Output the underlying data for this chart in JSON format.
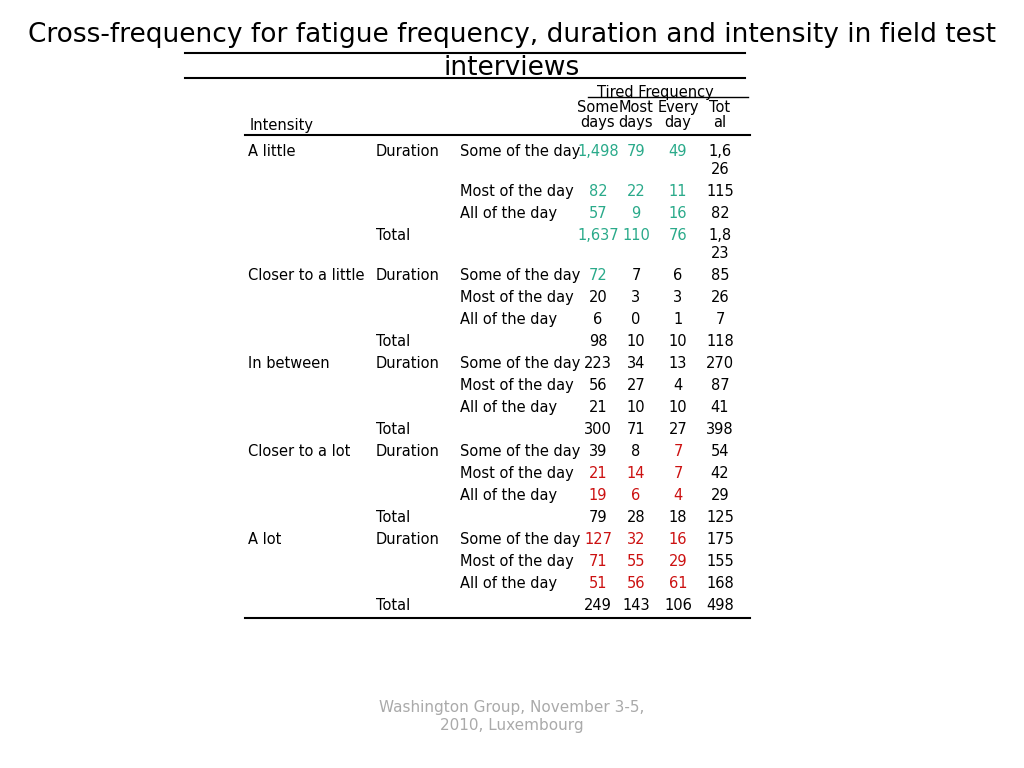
{
  "title_line1": "Cross-frequency for fatigue frequency, duration and intensity in field test",
  "title_line2": "interviews",
  "footer": "Washington Group, November 3-5,\n2010, Luxembourg",
  "header_group": "Tired Frequency",
  "col_header_top": [
    "Some",
    "Most",
    "Every",
    "Tot"
  ],
  "col_header_bot": [
    "days",
    "days",
    "day",
    "al"
  ],
  "row_header1": "Intensity",
  "rows": [
    {
      "intensity": "A little",
      "duration": "Duration",
      "duration_sub": "Some of the day",
      "val1": "1,498",
      "val2": "79",
      "val3": "49",
      "val4_a": "1,6",
      "val4_b": "26",
      "c1": "teal",
      "c2": "teal",
      "c3": "teal",
      "c4": "black"
    },
    {
      "intensity": "",
      "duration": "",
      "duration_sub": "Most of the day",
      "val1": "82",
      "val2": "22",
      "val3": "11",
      "val4_a": "115",
      "val4_b": "",
      "c1": "teal",
      "c2": "teal",
      "c3": "teal",
      "c4": "black"
    },
    {
      "intensity": "",
      "duration": "",
      "duration_sub": "All of the day",
      "val1": "57",
      "val2": "9",
      "val3": "16",
      "val4_a": "82",
      "val4_b": "",
      "c1": "teal",
      "c2": "teal",
      "c3": "teal",
      "c4": "black"
    },
    {
      "intensity": "",
      "duration": "Total",
      "duration_sub": "",
      "val1": "1,637",
      "val2": "110",
      "val3": "76",
      "val4_a": "1,8",
      "val4_b": "23",
      "c1": "teal",
      "c2": "teal",
      "c3": "teal",
      "c4": "black"
    },
    {
      "intensity": "Closer to a little",
      "duration": "Duration",
      "duration_sub": "Some of the day",
      "val1": "72",
      "val2": "7",
      "val3": "6",
      "val4_a": "85",
      "val4_b": "",
      "c1": "teal",
      "c2": "black",
      "c3": "black",
      "c4": "black"
    },
    {
      "intensity": "",
      "duration": "",
      "duration_sub": "Most of the day",
      "val1": "20",
      "val2": "3",
      "val3": "3",
      "val4_a": "26",
      "val4_b": "",
      "c1": "black",
      "c2": "black",
      "c3": "black",
      "c4": "black"
    },
    {
      "intensity": "",
      "duration": "",
      "duration_sub": "All of the day",
      "val1": "6",
      "val2": "0",
      "val3": "1",
      "val4_a": "7",
      "val4_b": "",
      "c1": "black",
      "c2": "black",
      "c3": "black",
      "c4": "black"
    },
    {
      "intensity": "",
      "duration": "Total",
      "duration_sub": "",
      "val1": "98",
      "val2": "10",
      "val3": "10",
      "val4_a": "118",
      "val4_b": "",
      "c1": "black",
      "c2": "black",
      "c3": "black",
      "c4": "black"
    },
    {
      "intensity": "In between",
      "duration": "Duration",
      "duration_sub": "Some of the day",
      "val1": "223",
      "val2": "34",
      "val3": "13",
      "val4_a": "270",
      "val4_b": "",
      "c1": "black",
      "c2": "black",
      "c3": "black",
      "c4": "black"
    },
    {
      "intensity": "",
      "duration": "",
      "duration_sub": "Most of the day",
      "val1": "56",
      "val2": "27",
      "val3": "4",
      "val4_a": "87",
      "val4_b": "",
      "c1": "black",
      "c2": "black",
      "c3": "black",
      "c4": "black"
    },
    {
      "intensity": "",
      "duration": "",
      "duration_sub": "All of the day",
      "val1": "21",
      "val2": "10",
      "val3": "10",
      "val4_a": "41",
      "val4_b": "",
      "c1": "black",
      "c2": "black",
      "c3": "black",
      "c4": "black"
    },
    {
      "intensity": "",
      "duration": "Total",
      "duration_sub": "",
      "val1": "300",
      "val2": "71",
      "val3": "27",
      "val4_a": "398",
      "val4_b": "",
      "c1": "black",
      "c2": "black",
      "c3": "black",
      "c4": "black"
    },
    {
      "intensity": "Closer to a lot",
      "duration": "Duration",
      "duration_sub": "Some of the day",
      "val1": "39",
      "val2": "8",
      "val3": "7",
      "val4_a": "54",
      "val4_b": "",
      "c1": "black",
      "c2": "black",
      "c3": "red",
      "c4": "black"
    },
    {
      "intensity": "",
      "duration": "",
      "duration_sub": "Most of the day",
      "val1": "21",
      "val2": "14",
      "val3": "7",
      "val4_a": "42",
      "val4_b": "",
      "c1": "red",
      "c2": "red",
      "c3": "red",
      "c4": "black"
    },
    {
      "intensity": "",
      "duration": "",
      "duration_sub": "All of the day",
      "val1": "19",
      "val2": "6",
      "val3": "4",
      "val4_a": "29",
      "val4_b": "",
      "c1": "red",
      "c2": "red",
      "c3": "red",
      "c4": "black"
    },
    {
      "intensity": "",
      "duration": "Total",
      "duration_sub": "",
      "val1": "79",
      "val2": "28",
      "val3": "18",
      "val4_a": "125",
      "val4_b": "",
      "c1": "black",
      "c2": "black",
      "c3": "black",
      "c4": "black"
    },
    {
      "intensity": "A lot",
      "duration": "Duration",
      "duration_sub": "Some of the day",
      "val1": "127",
      "val2": "32",
      "val3": "16",
      "val4_a": "175",
      "val4_b": "",
      "c1": "red",
      "c2": "red",
      "c3": "red",
      "c4": "black"
    },
    {
      "intensity": "",
      "duration": "",
      "duration_sub": "Most of the day",
      "val1": "71",
      "val2": "55",
      "val3": "29",
      "val4_a": "155",
      "val4_b": "",
      "c1": "red",
      "c2": "red",
      "c3": "red",
      "c4": "black"
    },
    {
      "intensity": "",
      "duration": "",
      "duration_sub": "All of the day",
      "val1": "51",
      "val2": "56",
      "val3": "61",
      "val4_a": "168",
      "val4_b": "",
      "c1": "red",
      "c2": "red",
      "c3": "red",
      "c4": "black"
    },
    {
      "intensity": "",
      "duration": "Total",
      "duration_sub": "",
      "val1": "249",
      "val2": "143",
      "val3": "106",
      "val4_a": "498",
      "val4_b": "",
      "c1": "black",
      "c2": "black",
      "c3": "black",
      "c4": "black"
    }
  ],
  "color_map": {
    "teal": "#2aaa8a",
    "red": "#cc1111",
    "black": "#000000"
  },
  "bg": "#ffffff"
}
